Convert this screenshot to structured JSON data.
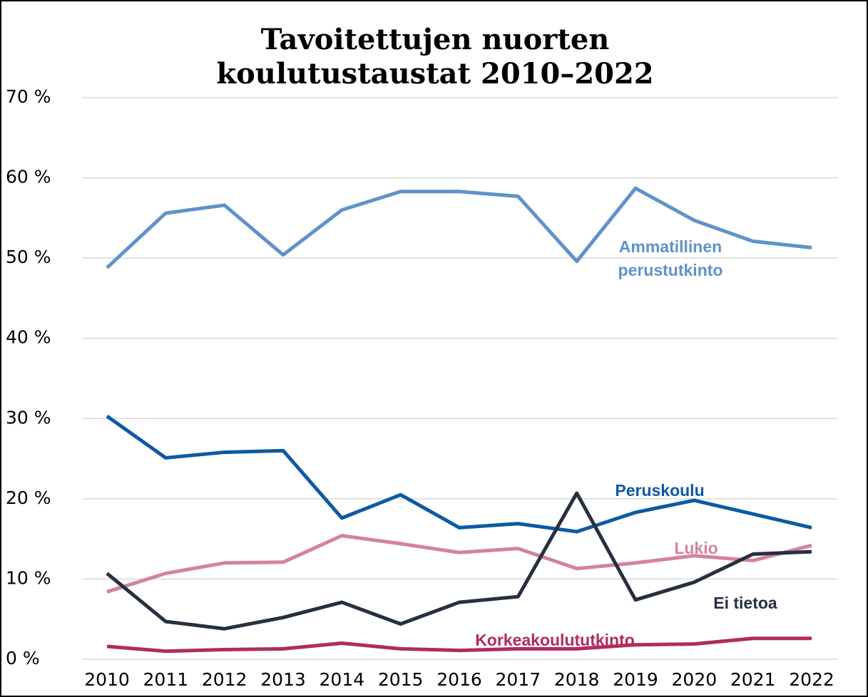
{
  "chart_data": {
    "type": "line",
    "title": "Tavoitettujen nuorten koulutustaustat 2010–2022",
    "x": [
      "2010",
      "2011",
      "2012",
      "2013",
      "2014",
      "2015",
      "2016",
      "2017",
      "2018",
      "2019",
      "2020",
      "2021",
      "2022"
    ],
    "series": [
      {
        "name": "Ammatillinen perustutkinto",
        "color": "#5f93c9",
        "values": [
          48.8,
          55.6,
          56.6,
          50.4,
          56.0,
          58.3,
          58.3,
          57.7,
          49.6,
          58.7,
          54.7,
          52.1,
          51.3
        ]
      },
      {
        "name": "Peruskoulu",
        "color": "#0d5aa3",
        "values": [
          30.3,
          25.1,
          25.8,
          26.0,
          17.6,
          20.5,
          16.4,
          16.9,
          15.9,
          18.3,
          19.8,
          18.1,
          16.4
        ]
      },
      {
        "name": "Lukio",
        "color": "#d4829f",
        "values": [
          8.4,
          10.7,
          12.0,
          12.1,
          15.4,
          14.4,
          13.3,
          13.8,
          11.3,
          12.0,
          12.9,
          12.3,
          14.2
        ]
      },
      {
        "name": "Ei tietoa",
        "color": "#26303f",
        "values": [
          10.7,
          4.7,
          3.8,
          5.2,
          7.1,
          4.4,
          7.1,
          7.8,
          20.7,
          7.4,
          9.6,
          13.1,
          13.4
        ]
      },
      {
        "name": "Korkeakoulututkinto",
        "color": "#b02b5f",
        "values": [
          1.6,
          1.0,
          1.2,
          1.3,
          2.0,
          1.3,
          1.1,
          1.3,
          1.3,
          1.8,
          1.9,
          2.6,
          2.6
        ]
      }
    ],
    "ylim": [
      0,
      70
    ],
    "yticks": [
      {
        "value": 0,
        "label": "0 %"
      },
      {
        "value": 10,
        "label": "10 %"
      },
      {
        "value": 20,
        "label": "20 %"
      },
      {
        "value": 30,
        "label": "30 %"
      },
      {
        "value": 40,
        "label": "40 %"
      },
      {
        "value": 50,
        "label": "50 %"
      },
      {
        "value": 60,
        "label": "60 %"
      },
      {
        "value": 70,
        "label": "70 %"
      }
    ],
    "grid": true
  }
}
